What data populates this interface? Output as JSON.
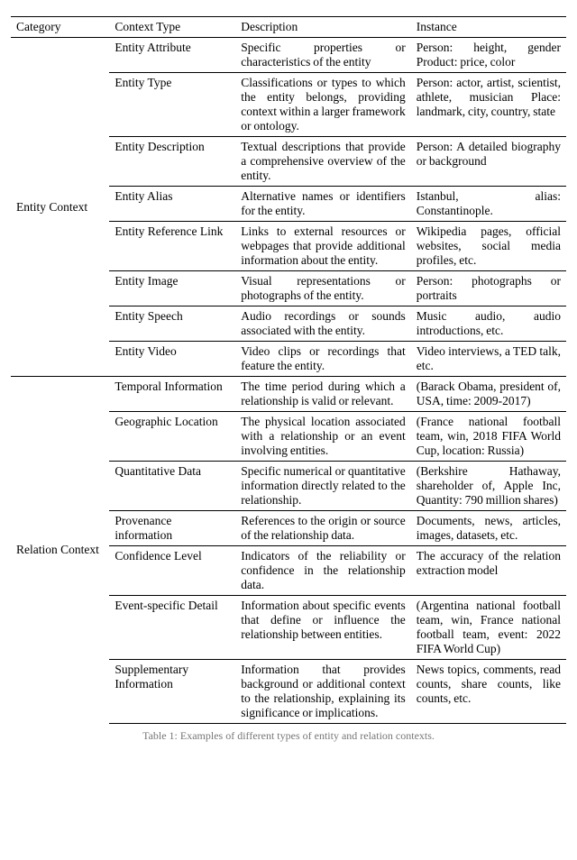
{
  "columns": [
    "Category",
    "Context Type",
    "Description",
    "Instance"
  ],
  "groups": [
    {
      "category": "Entity Context",
      "rows": [
        {
          "type": "Entity Attribute",
          "desc": "Specific properties or characteristics of the entity",
          "inst": "Person: height, gender Product: price, color"
        },
        {
          "type": "Entity Type",
          "desc": "Classifications or types to which the entity belongs, providing context within a larger framework or ontology.",
          "inst": "Person: actor, artist, scientist, athlete, musician Place: landmark, city, country, state"
        },
        {
          "type": "Entity Description",
          "desc": "Textual descriptions that provide a comprehensive overview of the entity.",
          "inst": "Person: A detailed biography or background"
        },
        {
          "type": "Entity Alias",
          "desc": "Alternative names or identifiers for the entity.",
          "inst": "Istanbul, alias: Constantinople."
        },
        {
          "type": "Entity Reference Link",
          "desc": "Links to external resources or webpages that provide additional information about the entity.",
          "inst": "Wikipedia pages, official websites, social media profiles, etc."
        },
        {
          "type": "Entity Image",
          "desc": "Visual representations or photographs of the entity.",
          "inst": "Person: photographs or portraits"
        },
        {
          "type": "Entity Speech",
          "desc": "Audio recordings or sounds associated with the entity.",
          "inst": "Music audio, audio introductions, etc."
        },
        {
          "type": "Entity Video",
          "desc": "Video clips or recordings that feature the entity.",
          "inst": "Video interviews, a TED talk, etc."
        }
      ]
    },
    {
      "category": "Relation Context",
      "rows": [
        {
          "type": "Temporal Information",
          "desc": "The time period during which a relationship is valid or relevant.",
          "inst": "(Barack Obama, president of, USA, time: 2009-2017)"
        },
        {
          "type": "Geographic Location",
          "desc": "The physical location associated with a relationship or an event involving entities.",
          "inst": "(France national football team, win, 2018 FIFA World Cup, location: Russia)"
        },
        {
          "type": "Quantitative Data",
          "desc": "Specific numerical or quantitative information directly related to the relationship.",
          "inst": "(Berkshire Hathaway, shareholder of, Apple Inc, Quantity: 790 million shares)"
        },
        {
          "type": "Provenance information",
          "desc": "References to the origin or source of the relationship data.",
          "inst": "Documents, news, articles, images, datasets, etc."
        },
        {
          "type": "Confidence Level",
          "desc": "Indicators of the reliability or confidence in the relationship data.",
          "inst": "The accuracy of the relation extraction model"
        },
        {
          "type": "Event-specific Detail",
          "desc": "Information about specific events that define or influence the relationship between entities.",
          "inst": "(Argentina national football team, win, France national football team, event: 2022 FIFA World Cup)"
        },
        {
          "type": "Supplementary Information",
          "desc": "Information that provides background or additional context to the relationship, explaining its significance or implications.",
          "inst": "News topics, comments, read counts, share counts, like counts, etc."
        }
      ]
    }
  ],
  "caption_prefix": "Table 1: Examples of different types of entity and relation contexts."
}
